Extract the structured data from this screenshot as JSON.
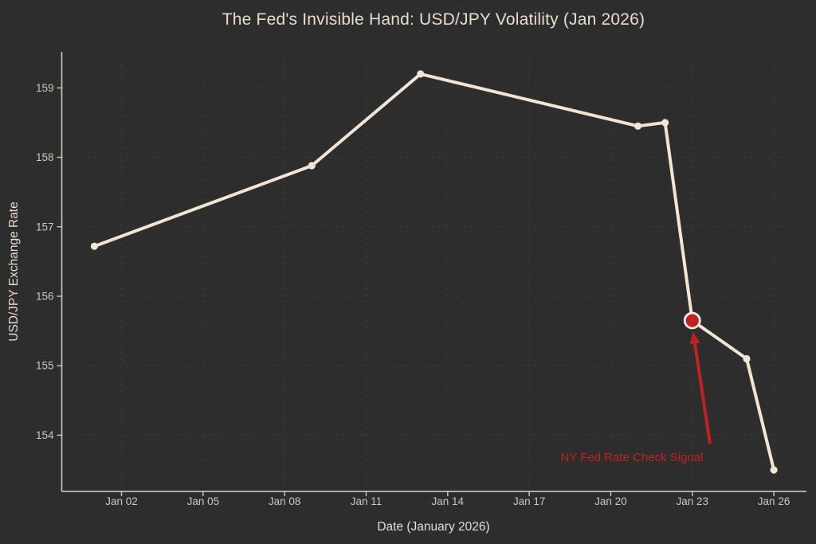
{
  "chart_data": {
    "type": "line",
    "title": "The Fed's Invisible Hand: USD/JPY Volatility (Jan 2026)",
    "xlabel": "Date (January 2026)",
    "ylabel": "USD/JPY Exchange Rate",
    "x_unit": "day of January 2026",
    "series": [
      {
        "name": "USD/JPY exchange rate",
        "x": [
          1,
          9,
          13,
          21,
          22,
          23,
          25,
          26
        ],
        "y": [
          156.72,
          157.88,
          159.2,
          158.45,
          158.5,
          155.65,
          155.1,
          153.5
        ],
        "marker": "circle"
      }
    ],
    "highlight_point": {
      "x": 23,
      "y": 155.65
    },
    "annotation": {
      "label": "NY Fed Rate Check Signal",
      "arrow": true
    },
    "x_ticks": {
      "days": [
        2,
        5,
        8,
        11,
        14,
        17,
        20,
        23,
        26
      ],
      "labels": [
        "Jan 02",
        "Jan 05",
        "Jan 08",
        "Jan 11",
        "Jan 14",
        "Jan 17",
        "Jan 20",
        "Jan 23",
        "Jan 26"
      ]
    },
    "y_ticks": [
      154,
      155,
      156,
      157,
      158,
      159
    ],
    "xlim_days": [
      -0.2,
      27.2
    ],
    "ylim": [
      153.19,
      159.52
    ],
    "grid": {
      "visible": true,
      "style": "dashed"
    },
    "legend": null,
    "colors": {
      "background": "#2d2d2d",
      "line": "#f3e4d3",
      "title_text": "#e7dccf",
      "tick_text": "#cfc6ba",
      "spine": "#c8bfb3",
      "grid": "#3b3b3b",
      "accent_red": "#c2221f",
      "highlight_ring": "#f5f0e8"
    }
  }
}
